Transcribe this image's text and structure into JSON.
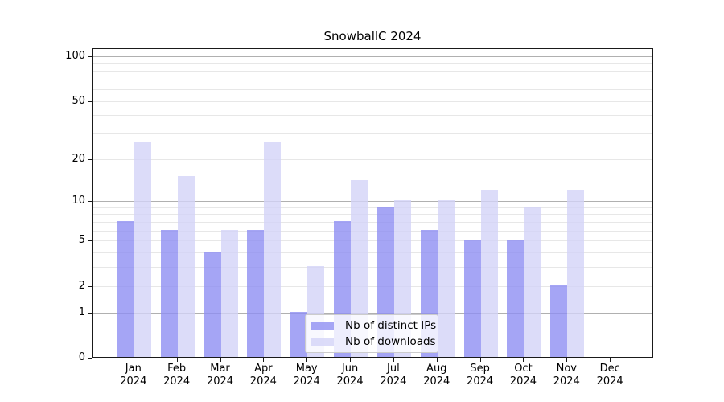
{
  "chart_data": {
    "type": "bar",
    "title": "SnowballC 2024",
    "categories": [
      "Jan 2024",
      "Feb 2024",
      "Mar 2024",
      "Apr 2024",
      "May 2024",
      "Jun 2024",
      "Jul 2024",
      "Aug 2024",
      "Sep 2024",
      "Oct 2024",
      "Nov 2024",
      "Dec 2024"
    ],
    "x_tick_month": [
      "Jan",
      "Feb",
      "Mar",
      "Apr",
      "May",
      "Jun",
      "Jul",
      "Aug",
      "Sep",
      "Oct",
      "Nov",
      "Dec"
    ],
    "x_tick_year": "2024",
    "series": [
      {
        "name": "Nb of distinct IPs",
        "color": "rgba(143,143,243,0.8)",
        "color_hex": "#a5a5f5",
        "values": [
          7,
          6,
          4,
          6,
          1,
          7,
          9,
          6,
          5,
          5,
          2,
          0
        ]
      },
      {
        "name": "Nb of downloads",
        "color": "rgba(211,211,248,0.8)",
        "color_hex": "#dcdcfa",
        "values": [
          26,
          15,
          6,
          26,
          3,
          14,
          10,
          10,
          12,
          9,
          12,
          0
        ]
      }
    ],
    "yscale": "log1p",
    "ylim": [
      0,
      113
    ],
    "y_ticks": [
      100,
      50,
      20,
      10,
      5,
      2,
      1,
      0
    ],
    "grid": {
      "major_values": [
        1,
        10,
        100
      ],
      "minor_values": [
        2,
        3,
        4,
        5,
        6,
        7,
        8,
        9,
        20,
        30,
        40,
        50,
        60,
        70,
        80,
        90
      ],
      "major_color": "#b0b0b0",
      "minor_color": "#e7e7e7"
    },
    "legend": {
      "position": "lower center-left",
      "entries": [
        "Nb of distinct IPs",
        "Nb of downloads"
      ]
    },
    "axis_color": "#1a1a1a"
  }
}
